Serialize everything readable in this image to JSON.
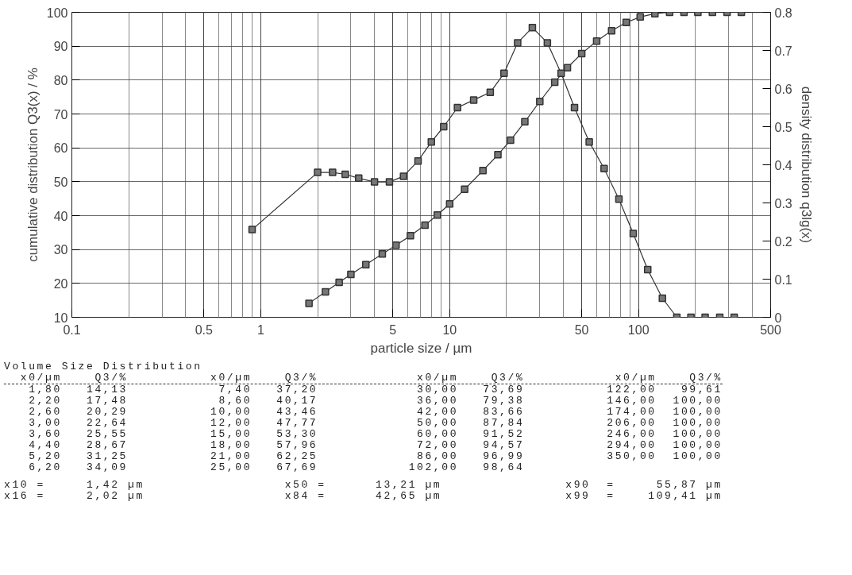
{
  "chart_data": {
    "type": "line",
    "xlabel": "particle size / µm",
    "ylabel": "cumulative distribution Q3(x) / %",
    "y2label": "density distribution q3lg(x)",
    "log": "x",
    "xlim": [
      0.1,
      500
    ],
    "xticks": [
      0.1,
      0.5,
      1,
      5,
      10,
      50,
      100,
      500
    ],
    "ylim": [
      10,
      100
    ],
    "yticks": [
      10,
      20,
      30,
      40,
      50,
      60,
      70,
      80,
      90,
      100
    ],
    "y2lim": [
      0,
      0.8
    ],
    "y2ticks": [
      0,
      0.1,
      0.2,
      0.3,
      0.4,
      0.5,
      0.6,
      0.7,
      0.8
    ],
    "grid": true,
    "marker": "square",
    "line_style": "solid",
    "series": [
      {
        "color": "#333333",
        "x": [
          1.8,
          2.2,
          2.6,
          3.0,
          3.6,
          4.4,
          5.2,
          6.2,
          7.4,
          8.6,
          10,
          12,
          15,
          18,
          21,
          25,
          30,
          36,
          42,
          50,
          60,
          72,
          86,
          102,
          122,
          146,
          174,
          206,
          246,
          294,
          350
        ],
        "values": [
          14.13,
          17.48,
          20.29,
          22.64,
          25.55,
          28.67,
          31.25,
          34.09,
          37.2,
          40.17,
          43.46,
          47.77,
          53.3,
          57.96,
          62.25,
          67.69,
          73.69,
          79.38,
          83.66,
          87.84,
          91.52,
          94.57,
          96.99,
          98.64,
          99.61,
          100,
          100,
          100,
          100,
          100,
          100
        ]
      },
      {
        "color": "#333333",
        "axis": "y2",
        "x": [
          0.9,
          2.0,
          2.4,
          2.8,
          3.3,
          4.0,
          4.8,
          5.7,
          6.8,
          8.0,
          9.3,
          11,
          13.4,
          16.4,
          19.4,
          22.9,
          27.4,
          32.9,
          38.9,
          45.8,
          54.8,
          65.7,
          78.7,
          93.7,
          111.8,
          133.7,
          159.4,
          189.3,
          225.1,
          269,
          320.8
        ],
        "values": [
          0.23,
          0.38,
          0.38,
          0.375,
          0.365,
          0.355,
          0.355,
          0.37,
          0.41,
          0.46,
          0.5,
          0.55,
          0.57,
          0.59,
          0.64,
          0.72,
          0.76,
          0.72,
          0.64,
          0.55,
          0.46,
          0.39,
          0.31,
          0.22,
          0.125,
          0.05,
          0,
          0,
          0,
          0,
          0
        ]
      }
    ],
    "annotations": [
      "Volume Size Distribution",
      "  x0/µm    Q3/%          x0/µm    Q3/%            x0/µm    Q3/%           x0/µm    Q3/%",
      "   1,80   14,13           7,40   37,20            30,00   73,69          122,00   99,61",
      "   2,20   17,48           8,60   40,17            36,00   79,38          146,00  100,00",
      "   2,60   20,29          10,00   43,46            42,00   83,66          174,00  100,00",
      "   3,00   22,64          12,00   47,77            50,00   87,84          206,00  100,00",
      "   3,60   25,55          15,00   53,30            60,00   91,52          246,00  100,00",
      "   4,40   28,67          18,00   57,96            72,00   94,57          294,00  100,00",
      "   5,20   31,25          21,00   62,25            86,00   96,99          350,00  100,00",
      "   6,20   34,09          25,00   67,69           102,00   98,64",
      "x10 =     1,42 µm                 x50 =      13,21 µm               x90  =     55,87 µm",
      "x16 =     2,02 µm                 x84 =      42,65 µm               x99  =    109,41 µm"
    ]
  }
}
